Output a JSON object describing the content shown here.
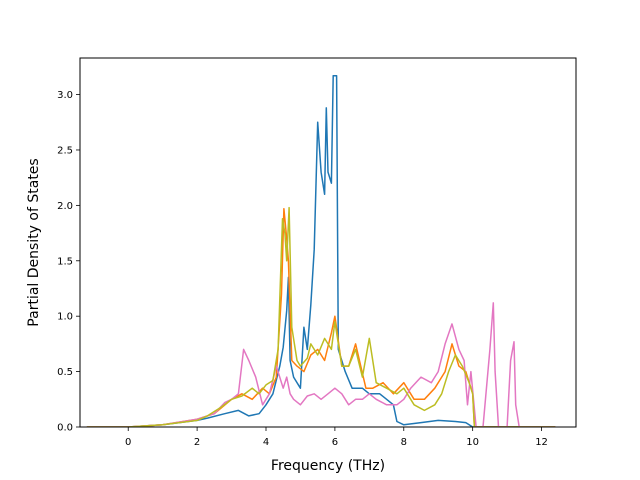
{
  "chart_data": {
    "type": "line",
    "title": "",
    "xlabel": "Frequency (THz)",
    "ylabel": "Partial Density of States",
    "xlim": [
      -1.4,
      13.0
    ],
    "ylim": [
      0.0,
      3.33
    ],
    "xticks": [
      0,
      2,
      4,
      6,
      8,
      10,
      12
    ],
    "yticks": [
      0.0,
      0.5,
      1.0,
      1.5,
      2.0,
      2.5,
      3.0
    ],
    "xtick_labels": [
      "0",
      "2",
      "4",
      "6",
      "8",
      "10",
      "12"
    ],
    "ytick_labels": [
      "0.0",
      "0.5",
      "1.0",
      "1.5",
      "2.0",
      "2.5",
      "3.0"
    ],
    "grid": false,
    "legend": "none",
    "series": [
      {
        "color": "#1f77b4",
        "x": [
          -1.2,
          0.0,
          1.0,
          2.0,
          2.3,
          2.8,
          3.2,
          3.5,
          3.8,
          4.0,
          4.2,
          4.4,
          4.5,
          4.6,
          4.65,
          4.7,
          4.8,
          5.0,
          5.1,
          5.2,
          5.3,
          5.4,
          5.5,
          5.6,
          5.7,
          5.75,
          5.8,
          5.9,
          5.95,
          6.05,
          6.1,
          6.3,
          6.5,
          6.8,
          7.0,
          7.3,
          7.5,
          7.7,
          7.8,
          8.0,
          8.5,
          9.0,
          9.5,
          9.8,
          10.0,
          10.5,
          11.0,
          12.4
        ],
        "y": [
          0.0,
          0.0,
          0.02,
          0.06,
          0.08,
          0.12,
          0.15,
          0.1,
          0.12,
          0.2,
          0.3,
          0.55,
          0.72,
          1.05,
          1.35,
          0.6,
          0.45,
          0.35,
          0.9,
          0.7,
          1.1,
          1.6,
          2.75,
          2.3,
          2.1,
          2.88,
          2.3,
          2.2,
          3.17,
          3.17,
          0.7,
          0.5,
          0.35,
          0.35,
          0.3,
          0.3,
          0.25,
          0.2,
          0.05,
          0.02,
          0.04,
          0.06,
          0.05,
          0.04,
          0.0,
          0.0,
          0.0,
          0.0
        ]
      },
      {
        "color": "#ff7f0e",
        "x": [
          -1.2,
          0.0,
          1.0,
          2.0,
          2.5,
          3.0,
          3.3,
          3.6,
          3.9,
          4.1,
          4.3,
          4.45,
          4.52,
          4.6,
          4.65,
          4.75,
          4.9,
          5.1,
          5.3,
          5.5,
          5.7,
          5.9,
          6.0,
          6.2,
          6.4,
          6.6,
          6.9,
          7.1,
          7.4,
          7.7,
          8.0,
          8.3,
          8.6,
          8.9,
          9.2,
          9.4,
          9.6,
          9.8,
          10.0,
          10.05,
          10.3,
          11.0,
          12.4
        ],
        "y": [
          0.0,
          0.0,
          0.02,
          0.07,
          0.12,
          0.25,
          0.3,
          0.25,
          0.35,
          0.3,
          0.45,
          1.2,
          1.97,
          1.7,
          1.5,
          0.6,
          0.55,
          0.5,
          0.65,
          0.7,
          0.6,
          0.85,
          1.0,
          0.55,
          0.55,
          0.75,
          0.35,
          0.35,
          0.4,
          0.3,
          0.4,
          0.25,
          0.25,
          0.35,
          0.5,
          0.75,
          0.55,
          0.5,
          0.3,
          0.0,
          0.0,
          0.0,
          0.0
        ]
      },
      {
        "color": "#e377c2",
        "x": [
          -1.2,
          0.0,
          1.0,
          2.0,
          2.5,
          2.8,
          3.0,
          3.2,
          3.35,
          3.5,
          3.7,
          3.9,
          4.1,
          4.3,
          4.5,
          4.6,
          4.7,
          4.8,
          5.0,
          5.2,
          5.4,
          5.6,
          5.8,
          6.0,
          6.2,
          6.4,
          6.6,
          6.8,
          7.0,
          7.2,
          7.5,
          7.8,
          8.0,
          8.2,
          8.5,
          8.8,
          9.0,
          9.2,
          9.4,
          9.6,
          9.75,
          9.85,
          9.95,
          10.1,
          10.3,
          10.5,
          10.6,
          10.65,
          10.75,
          10.9,
          11.0,
          11.1,
          11.2,
          11.25,
          11.35,
          11.5,
          12.4
        ],
        "y": [
          0.0,
          0.0,
          0.02,
          0.07,
          0.12,
          0.22,
          0.25,
          0.3,
          0.7,
          0.6,
          0.45,
          0.2,
          0.3,
          0.55,
          0.35,
          0.45,
          0.3,
          0.25,
          0.2,
          0.28,
          0.3,
          0.25,
          0.3,
          0.35,
          0.3,
          0.2,
          0.25,
          0.25,
          0.3,
          0.25,
          0.2,
          0.2,
          0.25,
          0.35,
          0.45,
          0.4,
          0.5,
          0.75,
          0.93,
          0.7,
          0.6,
          0.2,
          0.5,
          0.0,
          0.0,
          0.7,
          1.12,
          0.5,
          0.0,
          0.0,
          0.0,
          0.6,
          0.77,
          0.2,
          0.0,
          0.0,
          0.0
        ]
      },
      {
        "color": "#bcbd22",
        "x": [
          -1.2,
          0.0,
          1.0,
          2.0,
          2.3,
          2.7,
          3.0,
          3.3,
          3.6,
          3.8,
          4.0,
          4.2,
          4.35,
          4.48,
          4.55,
          4.6,
          4.67,
          4.75,
          4.9,
          5.0,
          5.2,
          5.3,
          5.5,
          5.7,
          5.9,
          6.0,
          6.2,
          6.4,
          6.6,
          6.8,
          7.0,
          7.2,
          7.5,
          7.8,
          8.0,
          8.3,
          8.6,
          8.9,
          9.1,
          9.3,
          9.5,
          9.7,
          9.9,
          10.0,
          10.05,
          10.3,
          11.0,
          12.4
        ],
        "y": [
          0.0,
          0.0,
          0.02,
          0.06,
          0.1,
          0.18,
          0.25,
          0.28,
          0.35,
          0.3,
          0.38,
          0.42,
          0.7,
          1.88,
          1.75,
          1.5,
          1.98,
          0.9,
          0.6,
          0.55,
          0.62,
          0.75,
          0.65,
          0.8,
          0.7,
          0.95,
          0.55,
          0.55,
          0.7,
          0.45,
          0.8,
          0.4,
          0.35,
          0.3,
          0.35,
          0.2,
          0.15,
          0.2,
          0.3,
          0.5,
          0.65,
          0.55,
          0.4,
          0.3,
          0.0,
          0.0,
          0.0,
          0.0
        ]
      }
    ]
  }
}
